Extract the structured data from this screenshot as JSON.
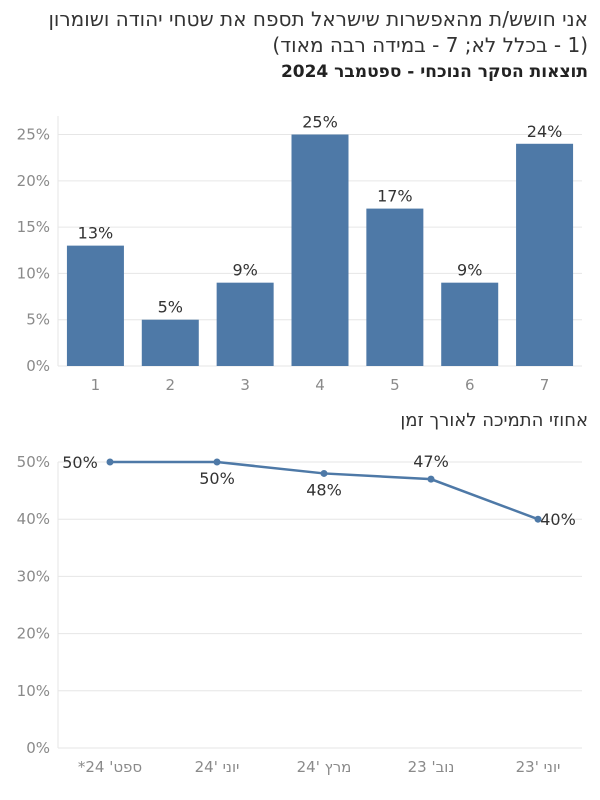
{
  "header": {
    "title": "אני חושש/ת מהאפשרות שישראל תספח את שטחי יהודה ושומרון",
    "subtitle": "(1 - בכלל לא; 7 - במידה רבה מאוד)",
    "section": "תוצאות הסקר הנוכחי - ספטמבר 2024"
  },
  "section2": {
    "title": "אחוזי התמיכה לאורך זמן"
  },
  "colors": {
    "bar": "#4e79a7",
    "line": "#4e79a7",
    "grid": "#e6e6e6"
  },
  "chart_data": [
    {
      "type": "bar",
      "categories": [
        "1",
        "2",
        "3",
        "4",
        "5",
        "6",
        "7"
      ],
      "values": [
        13,
        5,
        9,
        25,
        17,
        9,
        24
      ],
      "data_labels": [
        "13%",
        "5%",
        "9%",
        "25%",
        "17%",
        "9%",
        "24%"
      ],
      "yticks": [
        "0%",
        "5%",
        "10%",
        "15%",
        "20%",
        "25%"
      ],
      "ylim": [
        0,
        27
      ],
      "grid": true
    },
    {
      "type": "line",
      "categories": [
        "ספט' 24*",
        "יוני '24",
        "מרץ '24",
        "נוב' 23",
        "יוני '23"
      ],
      "values": [
        50,
        50,
        48,
        47,
        40
      ],
      "data_labels": [
        "50%",
        "50%",
        "48%",
        "47%",
        "40%"
      ],
      "yticks": [
        "0%",
        "10%",
        "20%",
        "30%",
        "40%",
        "50%"
      ],
      "ylim": [
        0,
        50
      ],
      "grid": true
    }
  ]
}
